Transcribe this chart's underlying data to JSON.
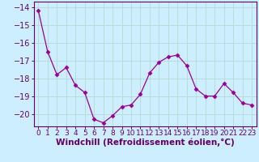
{
  "x": [
    0,
    1,
    2,
    3,
    4,
    5,
    6,
    7,
    8,
    9,
    10,
    11,
    12,
    13,
    14,
    15,
    16,
    17,
    18,
    19,
    20,
    21,
    22,
    23
  ],
  "y": [
    -14.2,
    -16.5,
    -17.8,
    -17.4,
    -18.4,
    -18.8,
    -20.3,
    -20.5,
    -20.1,
    -19.6,
    -19.5,
    -18.9,
    -17.7,
    -17.1,
    -16.8,
    -16.7,
    -17.3,
    -18.6,
    -19.0,
    -19.0,
    -18.3,
    -18.8,
    -19.4,
    -19.5
  ],
  "line_color": "#990099",
  "marker": "D",
  "marker_size": 2.5,
  "bg_color": "#cceeff",
  "grid_color": "#aaddcc",
  "xlabel": "Windchill (Refroidissement éolien,°C)",
  "ylim": [
    -20.7,
    -13.7
  ],
  "yticks": [
    -14,
    -15,
    -16,
    -17,
    -18,
    -19,
    -20
  ],
  "axis_color": "#660066",
  "tick_color": "#660066",
  "label_color": "#660066",
  "font_size": 7.0,
  "xlabel_font_size": 7.5
}
